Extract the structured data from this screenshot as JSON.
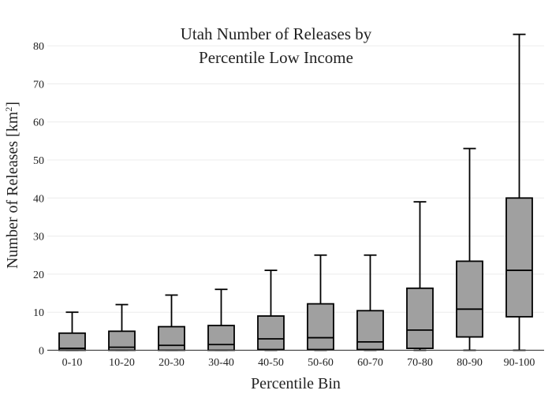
{
  "chart_data": {
    "type": "box",
    "title_lines": [
      "Utah Number of Releases by",
      "Percentile Low Income"
    ],
    "xlabel": "Percentile Bin",
    "ylabel_main": "Number of Releases  [km",
    "ylabel_sup": "2",
    "ylabel_close": "]",
    "ylim": [
      0,
      86
    ],
    "yticks": [
      0,
      10,
      20,
      30,
      40,
      50,
      60,
      70,
      80
    ],
    "grid": true,
    "box_color": "#a0a0a0",
    "line_color": "#000000",
    "categories": [
      "0-10",
      "10-20",
      "20-30",
      "30-40",
      "40-50",
      "50-60",
      "60-70",
      "70-80",
      "80-90",
      "90-100"
    ],
    "boxes": [
      {
        "min": 0,
        "q1": 0,
        "median": 0.5,
        "q3": 4.5,
        "max": 10
      },
      {
        "min": 0,
        "q1": 0,
        "median": 0.8,
        "q3": 5,
        "max": 12
      },
      {
        "min": 0,
        "q1": 0,
        "median": 1.3,
        "q3": 6.2,
        "max": 14.5
      },
      {
        "min": 0,
        "q1": 0,
        "median": 1.5,
        "q3": 6.5,
        "max": 16
      },
      {
        "min": 0,
        "q1": 0.2,
        "median": 3,
        "q3": 9,
        "max": 21
      },
      {
        "min": 0,
        "q1": 0.2,
        "median": 3.3,
        "q3": 12.2,
        "max": 25
      },
      {
        "min": 0,
        "q1": 0.2,
        "median": 2.2,
        "q3": 10.4,
        "max": 25
      },
      {
        "min": 0,
        "q1": 0.5,
        "median": 5.3,
        "q3": 16.3,
        "max": 39
      },
      {
        "min": 0,
        "q1": 3.5,
        "median": 10.8,
        "q3": 23.4,
        "max": 53
      },
      {
        "min": 0,
        "q1": 8.8,
        "median": 21,
        "q3": 40,
        "max": 83
      }
    ]
  }
}
